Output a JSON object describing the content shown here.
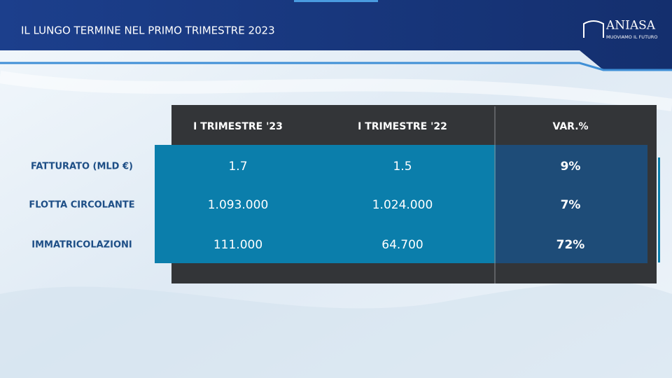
{
  "header": {
    "title": "IL LUNGO TERMINE NEL PRIMO TRIMESTRE 2023"
  },
  "logo": {
    "name": "ANIASA",
    "tagline": "MUOVIAMO IL FUTURO"
  },
  "table": {
    "columns": [
      "I TRIMESTRE '23",
      "I TRIMESTRE '22",
      "VAR.%"
    ],
    "rows": [
      [
        "FATTURATO (MLD €)",
        "1.7",
        "1.5",
        "9%"
      ],
      [
        "FLOTTA CIRCOLANTE",
        "1.093.000",
        "1.024.000",
        "7%"
      ],
      [
        "IMMATRICOLAZIONI",
        "111.000",
        "64.700",
        "72%"
      ]
    ]
  }
}
